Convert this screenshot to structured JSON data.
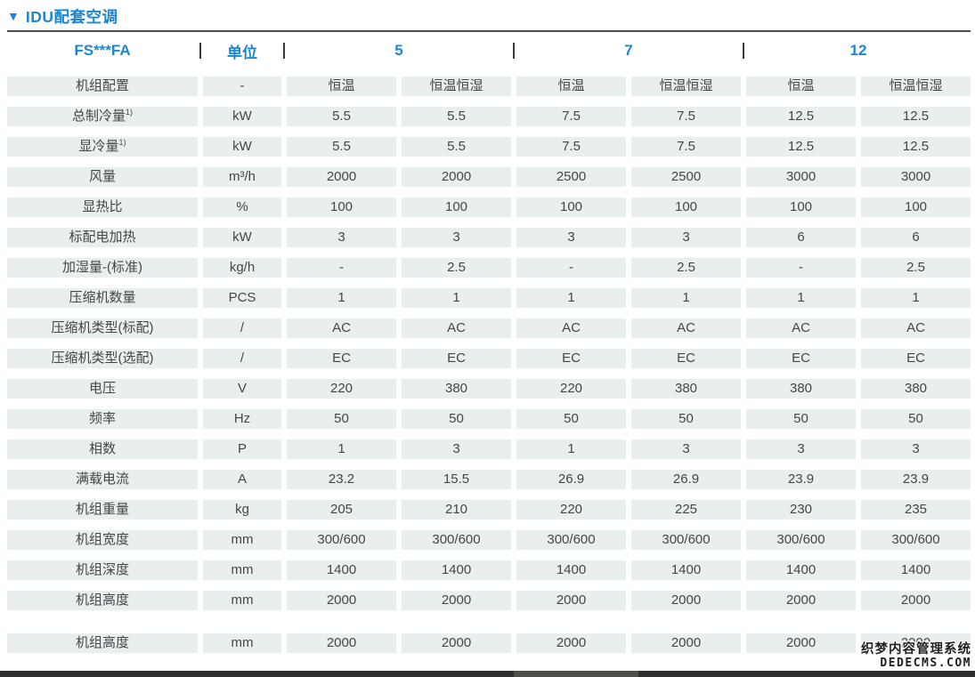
{
  "section": {
    "marker_icon": "▼",
    "title": "IDU配套空调"
  },
  "table": {
    "header": {
      "model": "FS***FA",
      "unit": "单位",
      "groups": [
        "5",
        "7",
        "12"
      ]
    },
    "rows": [
      {
        "label": "机组配置",
        "sup": "",
        "unit": "-",
        "values": [
          "恒温",
          "恒温恒湿",
          "恒温",
          "恒温恒湿",
          "恒温",
          "恒温恒湿"
        ]
      },
      {
        "label": "总制冷量",
        "sup": "1)",
        "unit": "kW",
        "values": [
          "5.5",
          "5.5",
          "7.5",
          "7.5",
          "12.5",
          "12.5"
        ]
      },
      {
        "label": "显冷量",
        "sup": "1)",
        "unit": "kW",
        "values": [
          "5.5",
          "5.5",
          "7.5",
          "7.5",
          "12.5",
          "12.5"
        ]
      },
      {
        "label": "风量",
        "sup": "",
        "unit": "m³/h",
        "values": [
          "2000",
          "2000",
          "2500",
          "2500",
          "3000",
          "3000"
        ]
      },
      {
        "label": "显热比",
        "sup": "",
        "unit": "%",
        "values": [
          "100",
          "100",
          "100",
          "100",
          "100",
          "100"
        ]
      },
      {
        "label": "标配电加热",
        "sup": "",
        "unit": "kW",
        "values": [
          "3",
          "3",
          "3",
          "3",
          "6",
          "6"
        ]
      },
      {
        "label": "加湿量-(标准)",
        "sup": "",
        "unit": "kg/h",
        "values": [
          "-",
          "2.5",
          "-",
          "2.5",
          "-",
          "2.5"
        ]
      },
      {
        "label": "压缩机数量",
        "sup": "",
        "unit": "PCS",
        "values": [
          "1",
          "1",
          "1",
          "1",
          "1",
          "1"
        ]
      },
      {
        "label": "压缩机类型(标配)",
        "sup": "",
        "unit": "/",
        "values": [
          "AC",
          "AC",
          "AC",
          "AC",
          "AC",
          "AC"
        ]
      },
      {
        "label": "压缩机类型(选配)",
        "sup": "",
        "unit": "/",
        "values": [
          "EC",
          "EC",
          "EC",
          "EC",
          "EC",
          "EC"
        ]
      },
      {
        "label": "电压",
        "sup": "",
        "unit": "V",
        "values": [
          "220",
          "380",
          "220",
          "380",
          "380",
          "380"
        ]
      },
      {
        "label": "频率",
        "sup": "",
        "unit": "Hz",
        "values": [
          "50",
          "50",
          "50",
          "50",
          "50",
          "50"
        ]
      },
      {
        "label": "相数",
        "sup": "",
        "unit": "P",
        "values": [
          "1",
          "3",
          "1",
          "3",
          "3",
          "3"
        ]
      },
      {
        "label": "满载电流",
        "sup": "",
        "unit": "A",
        "values": [
          "23.2",
          "15.5",
          "26.9",
          "26.9",
          "23.9",
          "23.9"
        ]
      },
      {
        "label": "机组重量",
        "sup": "",
        "unit": "kg",
        "values": [
          "205",
          "210",
          "220",
          "225",
          "230",
          "235"
        ]
      },
      {
        "label": "机组宽度",
        "sup": "",
        "unit": "mm",
        "values": [
          "300/600",
          "300/600",
          "300/600",
          "300/600",
          "300/600",
          "300/600"
        ]
      },
      {
        "label": "机组深度",
        "sup": "",
        "unit": "mm",
        "values": [
          "1400",
          "1400",
          "1400",
          "1400",
          "1400",
          "1400"
        ]
      },
      {
        "label": "机组高度",
        "sup": "",
        "unit": "mm",
        "values": [
          "2000",
          "2000",
          "2000",
          "2000",
          "2000",
          "2000"
        ]
      },
      {
        "label": "机组高度",
        "sup": "",
        "unit": "mm",
        "values": [
          "2000",
          "2000",
          "2000",
          "2000",
          "2000",
          "2000"
        ],
        "extra_gap": true
      }
    ]
  },
  "watermark": {
    "line1": "织梦内容管理系统",
    "line2": "DEDECMS.COM"
  },
  "colors": {
    "accent": "#1b87d3",
    "cell_bg": "#e9efed",
    "text": "#43474a",
    "bottom_bar": "#312f2d",
    "bottom_bar_thumb": "#514f4c"
  }
}
